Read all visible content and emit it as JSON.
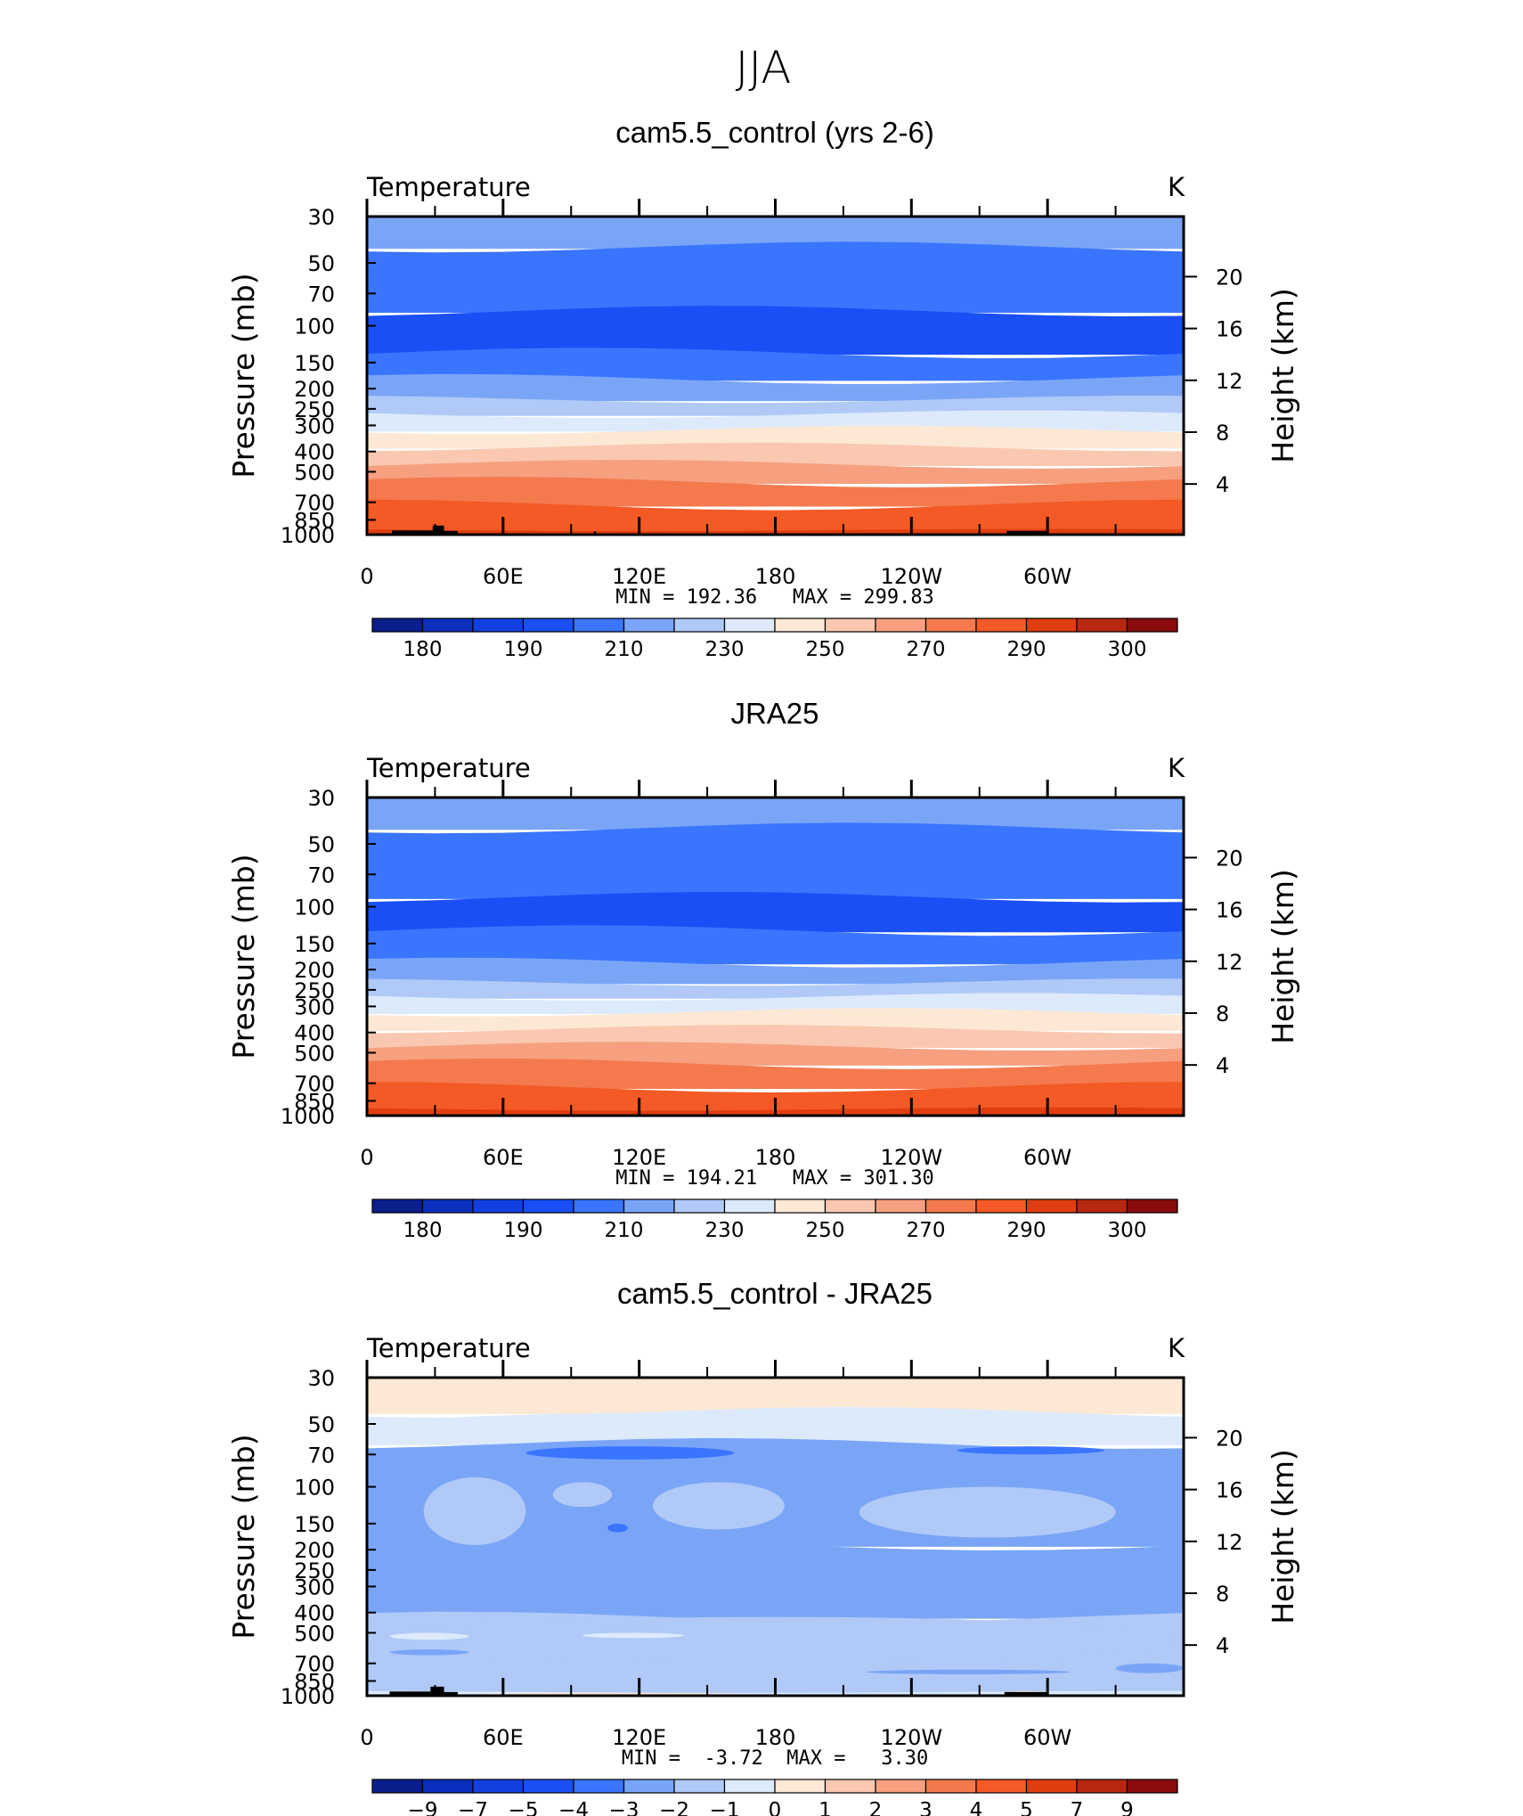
{
  "figure_title": "JJA",
  "chart_data": [
    {
      "type": "heatmap",
      "subtitle": "cam5.5_control (yrs 2-6)",
      "left_label": "Temperature",
      "right_label": "K",
      "ylabel": "Pressure (mb)",
      "y2label": "Height (km)",
      "y_ticks": [
        "30",
        "50",
        "70",
        "100",
        "150",
        "200",
        "250",
        "300",
        "400",
        "500",
        "700",
        "850",
        "1000"
      ],
      "y_tick_values": [
        30,
        50,
        70,
        100,
        150,
        200,
        250,
        300,
        400,
        500,
        700,
        850,
        1000
      ],
      "y2_ticks": [
        "20",
        "16",
        "12",
        "8",
        "4"
      ],
      "y2_tick_values": [
        20,
        16,
        12,
        8,
        4
      ],
      "x_ticks": [
        "0",
        "60E",
        "120E",
        "180",
        "120W",
        "60W"
      ],
      "x_tick_values": [
        0,
        60,
        120,
        180,
        240,
        300
      ],
      "x_range": [
        0,
        360
      ],
      "y_range_mb": [
        30,
        1000
      ],
      "minmax_text": "MIN = 192.36   MAX = 299.83",
      "min": 192.36,
      "max": 299.83,
      "colorbar": {
        "labels": [
          "180",
          "190",
          "210",
          "230",
          "250",
          "270",
          "290",
          "300"
        ],
        "colors": [
          "#0a1e8c",
          "#0c2fbf",
          "#1240e0",
          "#1a4ff5",
          "#3a75ff",
          "#7aa5f7",
          "#b0c9f7",
          "#dceafc",
          "#fde8d6",
          "#fac8b0",
          "#f6a080",
          "#f47a4e",
          "#f45a26",
          "#e03e10",
          "#b82710",
          "#8a0c0c"
        ]
      },
      "bands": [
        {
          "p_top": 30,
          "p_bottom": 42,
          "color": "#7aa5f7"
        },
        {
          "p_top": 42,
          "p_bottom": 85,
          "color": "#3a75ff"
        },
        {
          "p_top": 85,
          "p_bottom": 135,
          "color": "#1a4ff5"
        },
        {
          "p_top": 135,
          "p_bottom": 180,
          "color": "#3a75ff"
        },
        {
          "p_top": 180,
          "p_bottom": 225,
          "color": "#7aa5f7"
        },
        {
          "p_top": 225,
          "p_bottom": 265,
          "color": "#b0c9f7"
        },
        {
          "p_top": 265,
          "p_bottom": 315,
          "color": "#dceafc"
        },
        {
          "p_top": 315,
          "p_bottom": 380,
          "color": "#fde8d6"
        },
        {
          "p_top": 380,
          "p_bottom": 460,
          "color": "#fac8b0"
        },
        {
          "p_top": 460,
          "p_bottom": 560,
          "color": "#f6a080"
        },
        {
          "p_top": 560,
          "p_bottom": 720,
          "color": "#f47a4e"
        },
        {
          "p_top": 720,
          "p_bottom": 950,
          "color": "#f45a26"
        },
        {
          "p_top": 950,
          "p_bottom": 1000,
          "color": "#e03e10"
        }
      ],
      "blobs": [],
      "terrain": [
        [
          11,
          29,
          955
        ],
        [
          29,
          34,
          905
        ],
        [
          34,
          40,
          960
        ],
        [
          100,
          101,
          965
        ],
        [
          282,
          300,
          960
        ]
      ]
    },
    {
      "type": "heatmap",
      "subtitle": "JRA25",
      "left_label": "Temperature",
      "right_label": "K",
      "ylabel": "Pressure (mb)",
      "y2label": "Height (km)",
      "y_ticks": [
        "30",
        "50",
        "70",
        "100",
        "150",
        "200",
        "250",
        "300",
        "400",
        "500",
        "700",
        "850",
        "1000"
      ],
      "y_tick_values": [
        30,
        50,
        70,
        100,
        150,
        200,
        250,
        300,
        400,
        500,
        700,
        850,
        1000
      ],
      "y2_ticks": [
        "20",
        "16",
        "12",
        "8",
        "4"
      ],
      "y2_tick_values": [
        20,
        16,
        12,
        8,
        4
      ],
      "x_ticks": [
        "0",
        "60E",
        "120E",
        "180",
        "120W",
        "60W"
      ],
      "x_tick_values": [
        0,
        60,
        120,
        180,
        240,
        300
      ],
      "x_range": [
        0,
        360
      ],
      "y_range_mb": [
        30,
        1000
      ],
      "minmax_text": "MIN = 194.21   MAX = 301.30",
      "min": 194.21,
      "max": 301.3,
      "colorbar": {
        "labels": [
          "180",
          "190",
          "210",
          "230",
          "250",
          "270",
          "290",
          "300"
        ],
        "colors": [
          "#0a1e8c",
          "#0c2fbf",
          "#1240e0",
          "#1a4ff5",
          "#3a75ff",
          "#7aa5f7",
          "#b0c9f7",
          "#dceafc",
          "#fde8d6",
          "#fac8b0",
          "#f6a080",
          "#f47a4e",
          "#f45a26",
          "#e03e10",
          "#b82710",
          "#8a0c0c"
        ]
      },
      "bands": [
        {
          "p_top": 30,
          "p_bottom": 42,
          "color": "#7aa5f7"
        },
        {
          "p_top": 42,
          "p_bottom": 90,
          "color": "#3a75ff"
        },
        {
          "p_top": 90,
          "p_bottom": 130,
          "color": "#1a4ff5"
        },
        {
          "p_top": 130,
          "p_bottom": 185,
          "color": "#3a75ff"
        },
        {
          "p_top": 185,
          "p_bottom": 230,
          "color": "#7aa5f7"
        },
        {
          "p_top": 230,
          "p_bottom": 270,
          "color": "#b0c9f7"
        },
        {
          "p_top": 270,
          "p_bottom": 320,
          "color": "#dceafc"
        },
        {
          "p_top": 320,
          "p_bottom": 385,
          "color": "#fde8d6"
        },
        {
          "p_top": 385,
          "p_bottom": 465,
          "color": "#fac8b0"
        },
        {
          "p_top": 465,
          "p_bottom": 565,
          "color": "#f6a080"
        },
        {
          "p_top": 565,
          "p_bottom": 730,
          "color": "#f47a4e"
        },
        {
          "p_top": 730,
          "p_bottom": 930,
          "color": "#f45a26"
        },
        {
          "p_top": 930,
          "p_bottom": 1000,
          "color": "#e03e10"
        }
      ],
      "blobs": [],
      "terrain": []
    },
    {
      "type": "heatmap",
      "subtitle": "cam5.5_control - JRA25",
      "left_label": "Temperature",
      "right_label": "K",
      "ylabel": "Pressure (mb)",
      "y2label": "Height (km)",
      "y_ticks": [
        "30",
        "50",
        "70",
        "100",
        "150",
        "200",
        "250",
        "300",
        "400",
        "500",
        "700",
        "850",
        "1000"
      ],
      "y_tick_values": [
        30,
        50,
        70,
        100,
        150,
        200,
        250,
        300,
        400,
        500,
        700,
        850,
        1000
      ],
      "y2_ticks": [
        "20",
        "16",
        "12",
        "8",
        "4"
      ],
      "y2_tick_values": [
        20,
        16,
        12,
        8,
        4
      ],
      "x_ticks": [
        "0",
        "60E",
        "120E",
        "180",
        "120W",
        "60W"
      ],
      "x_tick_values": [
        0,
        60,
        120,
        180,
        240,
        300
      ],
      "x_range": [
        0,
        360
      ],
      "y_range_mb": [
        30,
        1000
      ],
      "minmax_text": "MIN =  -3.72  MAX =   3.30",
      "min": -3.72,
      "max": 3.3,
      "colorbar": {
        "labels": [
          "-9",
          "-7",
          "-5",
          "-4",
          "-3",
          "-2",
          "-1",
          "0",
          "1",
          "2",
          "3",
          "4",
          "5",
          "7",
          "9"
        ],
        "colors": [
          "#0a1e8c",
          "#0c2fbf",
          "#1240e0",
          "#1a4ff5",
          "#3a75ff",
          "#7aa5f7",
          "#b0c9f7",
          "#dceafc",
          "#fde8d6",
          "#fac8b0",
          "#f6a080",
          "#f47a4e",
          "#f45a26",
          "#e03e10",
          "#b82710",
          "#8a0c0c"
        ]
      },
      "bands": [
        {
          "p_top": 30,
          "p_bottom": 44,
          "color": "#fde8d6"
        },
        {
          "p_top": 44,
          "p_bottom": 62,
          "color": "#dceafc"
        },
        {
          "p_top": 62,
          "p_bottom": 190,
          "color": "#7aa5f7"
        },
        {
          "p_top": 190,
          "p_bottom": 420,
          "color": "#7aa5f7"
        },
        {
          "p_top": 420,
          "p_bottom": 960,
          "color": "#b0c9f7"
        },
        {
          "p_top": 960,
          "p_bottom": 1000,
          "color": "#dceafc"
        }
      ],
      "blobs": [
        {
          "x0": 20,
          "x1": 300,
          "p_top": 44,
          "p_bottom": 55,
          "color": "#dceafc"
        },
        {
          "x0": 25,
          "x1": 70,
          "p_top": 90,
          "p_bottom": 190,
          "color": "#b0c9f7"
        },
        {
          "x0": 82,
          "x1": 108,
          "p_top": 95,
          "p_bottom": 125,
          "color": "#b0c9f7"
        },
        {
          "x0": 126,
          "x1": 184,
          "p_top": 95,
          "p_bottom": 160,
          "color": "#b0c9f7"
        },
        {
          "x0": 217,
          "x1": 330,
          "p_top": 100,
          "p_bottom": 175,
          "color": "#b0c9f7"
        },
        {
          "x0": 70,
          "x1": 162,
          "p_top": 64,
          "p_bottom": 74,
          "color": "#3a75ff"
        },
        {
          "x0": 260,
          "x1": 325,
          "p_top": 64,
          "p_bottom": 70,
          "color": "#3a75ff"
        },
        {
          "x0": 106,
          "x1": 115,
          "p_top": 150,
          "p_bottom": 165,
          "color": "#3a75ff"
        },
        {
          "x0": 0,
          "x1": 360,
          "p_top": 420,
          "p_bottom": 700,
          "color": "#b0c9f7"
        },
        {
          "x0": 10,
          "x1": 45,
          "p_top": 500,
          "p_bottom": 540,
          "color": "#dceafc"
        },
        {
          "x0": 95,
          "x1": 140,
          "p_top": 500,
          "p_bottom": 530,
          "color": "#dceafc"
        },
        {
          "x0": 10,
          "x1": 45,
          "p_top": 600,
          "p_bottom": 640,
          "color": "#7aa5f7"
        },
        {
          "x0": 220,
          "x1": 310,
          "p_top": 750,
          "p_bottom": 790,
          "color": "#7aa5f7"
        },
        {
          "x0": 330,
          "x1": 360,
          "p_top": 700,
          "p_bottom": 780,
          "color": "#7aa5f7"
        },
        {
          "x0": 50,
          "x1": 170,
          "p_top": 970,
          "p_bottom": 1000,
          "color": "#fde8d6"
        },
        {
          "x0": 280,
          "x1": 300,
          "p_top": 950,
          "p_bottom": 1000,
          "color": "#fde8d6"
        }
      ],
      "terrain": [
        [
          10,
          28,
          955
        ],
        [
          28,
          34,
          905
        ],
        [
          34,
          40,
          960
        ],
        [
          281,
          300,
          960
        ]
      ]
    }
  ]
}
